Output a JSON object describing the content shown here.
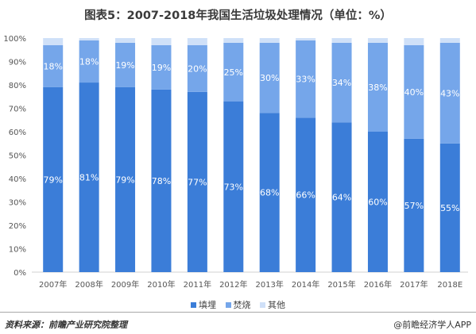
{
  "title": "图表5：2007-2018年我国生活垃圾处理情况（单位：%）",
  "footer": {
    "source": "资料来源：前瞻产业研究院整理",
    "brand": "@前瞻经济学人APP"
  },
  "colors": {
    "landfill": "#3b7dd8",
    "incineration": "#75a6ea",
    "other": "#cfe0f8"
  },
  "chart_data": {
    "type": "bar",
    "stacked": true,
    "percent": true,
    "title": "图表5：2007-2018年我国生活垃圾处理情况（单位：%）",
    "xlabel": "",
    "ylabel": "",
    "ylim": [
      0,
      100
    ],
    "yticks": [
      "0%",
      "10%",
      "20%",
      "30%",
      "40%",
      "50%",
      "60%",
      "70%",
      "80%",
      "90%",
      "100%"
    ],
    "categories": [
      "2007年",
      "2008年",
      "2009年",
      "2010年",
      "2011年",
      "2012年",
      "2013年",
      "2014年",
      "2015年",
      "2016年",
      "2017年",
      "2018E"
    ],
    "series": [
      {
        "name": "填埋",
        "values": [
          79,
          81,
          79,
          78,
          77,
          73,
          68,
          66,
          64,
          60,
          57,
          55
        ],
        "labels": [
          "79%",
          "81%",
          "79%",
          "78%",
          "77%",
          "73%",
          "68%",
          "66%",
          "64%",
          "60%",
          "57%",
          "55%"
        ]
      },
      {
        "name": "焚烧",
        "values": [
          18,
          18,
          19,
          19,
          20,
          25,
          30,
          33,
          34,
          38,
          40,
          43
        ],
        "labels": [
          "18%",
          "18%",
          "19%",
          "19%",
          "20%",
          "25%",
          "30%",
          "33%",
          "34%",
          "38%",
          "40%",
          "43%"
        ]
      },
      {
        "name": "其他",
        "values": [
          3,
          1,
          2,
          3,
          3,
          2,
          2,
          1,
          2,
          2,
          3,
          2
        ]
      }
    ],
    "grid": false,
    "legend_position": "bottom"
  }
}
